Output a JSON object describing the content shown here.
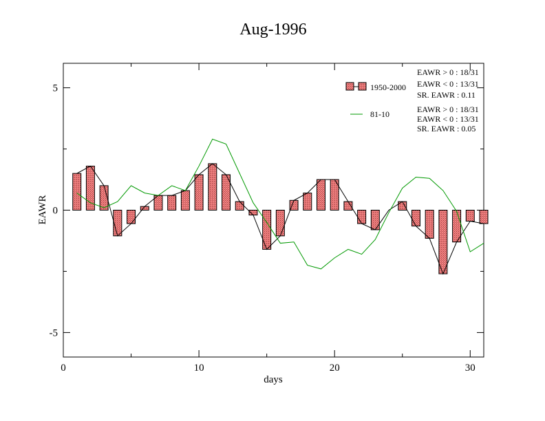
{
  "chart_data": {
    "type": "bar",
    "title": "Aug-1996",
    "xlabel": "days",
    "ylabel": "EAWR",
    "xlim": [
      0,
      31
    ],
    "ylim": [
      -6,
      6
    ],
    "xticks": [
      0,
      10,
      20,
      30
    ],
    "yticks": [
      -5,
      0,
      5
    ],
    "x": [
      1,
      2,
      3,
      4,
      5,
      6,
      7,
      8,
      9,
      10,
      11,
      12,
      13,
      14,
      15,
      16,
      17,
      18,
      19,
      20,
      21,
      22,
      23,
      24,
      25,
      26,
      27,
      28,
      29,
      30,
      31
    ],
    "series": [
      {
        "name": "1950-2000",
        "kind": "bar+line",
        "color": "#f08080",
        "values": [
          1.5,
          1.8,
          1.0,
          -1.05,
          -0.55,
          0.15,
          0.6,
          0.6,
          0.8,
          1.45,
          1.9,
          1.45,
          0.35,
          -0.2,
          -1.6,
          -1.05,
          0.4,
          0.7,
          1.25,
          1.25,
          0.35,
          -0.55,
          -0.8,
          0.0,
          0.35,
          -0.65,
          -1.15,
          -2.6,
          -1.3,
          -0.45,
          -0.55
        ]
      },
      {
        "name": "81-10",
        "kind": "line",
        "color": "#009900",
        "values": [
          0.7,
          0.3,
          0.1,
          0.35,
          1.0,
          0.7,
          0.6,
          1.0,
          0.8,
          1.8,
          2.9,
          2.7,
          1.5,
          0.3,
          -0.5,
          -1.35,
          -1.3,
          -2.25,
          -2.4,
          -1.95,
          -1.6,
          -1.8,
          -1.2,
          -0.1,
          0.9,
          1.35,
          1.3,
          0.8,
          -0.05,
          -1.7,
          -1.35
        ]
      }
    ],
    "legend": [
      {
        "label": "1950-2000",
        "stats": [
          "EAWR > 0 : 18/31",
          "EAWR < 0 : 13/31",
          "SR. EAWR :  0.11"
        ]
      },
      {
        "label": "81-10",
        "stats": [
          "EAWR > 0 : 18/31",
          "EAWR < 0 : 13/31",
          "SR. EAWR :  0.05"
        ]
      }
    ],
    "legend_position": "top-right"
  }
}
